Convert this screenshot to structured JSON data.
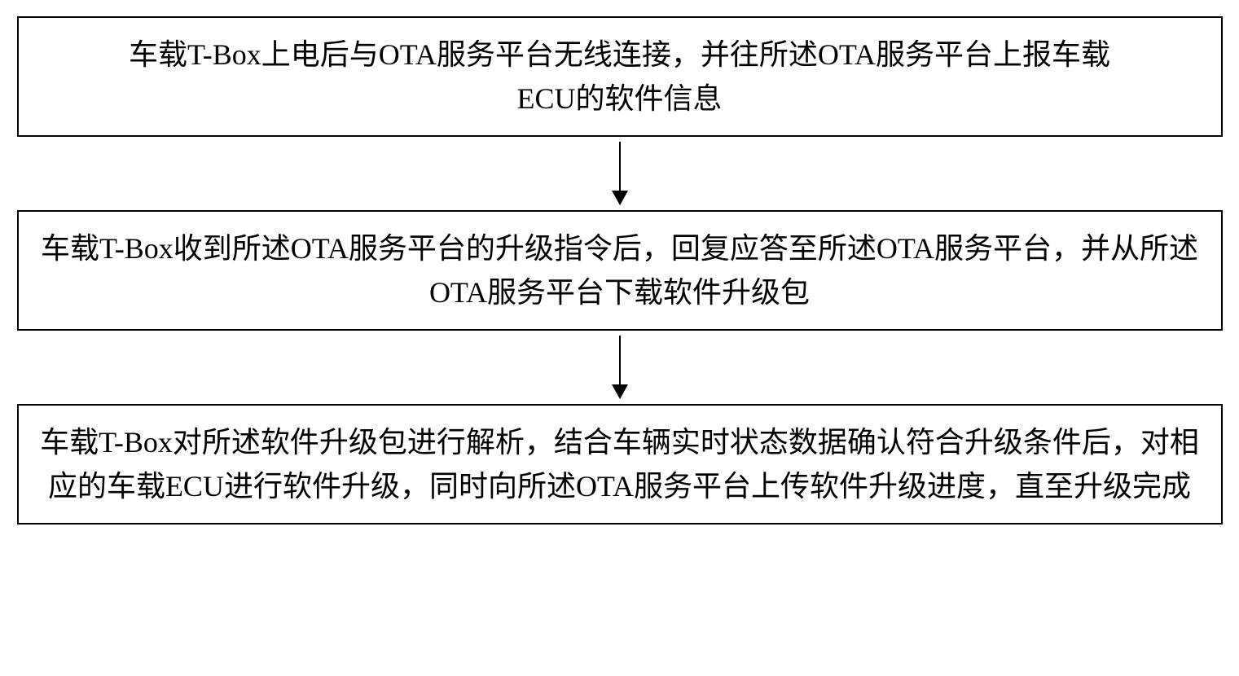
{
  "flowchart": {
    "type": "flowchart",
    "direction": "vertical",
    "background_color": "#ffffff",
    "border_color": "#000000",
    "border_width": 2,
    "text_color": "#000000",
    "font_size": 36,
    "font_family": "SimSun",
    "arrow_color": "#000000",
    "arrow_line_width": 2,
    "arrow_head_width": 20,
    "arrow_head_height": 18,
    "arrow_gap_height": 90,
    "nodes": [
      {
        "id": "step1",
        "label": "车载T-Box上电后与OTA服务平台无线连接，并往所述OTA服务平台上报车载ECU的软件信息",
        "lines": 2
      },
      {
        "id": "step2",
        "label": "车载T-Box收到所述OTA服务平台的升级指令后，回复应答至所述OTA服务平台，并从所述OTA服务平台下载软件升级包",
        "lines": 2
      },
      {
        "id": "step3",
        "label": "车载T-Box对所述软件升级包进行解析，结合车辆实时状态数据确认符合升级条件后，对相应的车载ECU进行软件升级，同时向所述OTA服务平台上传软件升级进度，直至升级完成",
        "lines": 3
      }
    ],
    "edges": [
      {
        "from": "step1",
        "to": "step2"
      },
      {
        "from": "step2",
        "to": "step3"
      }
    ]
  }
}
